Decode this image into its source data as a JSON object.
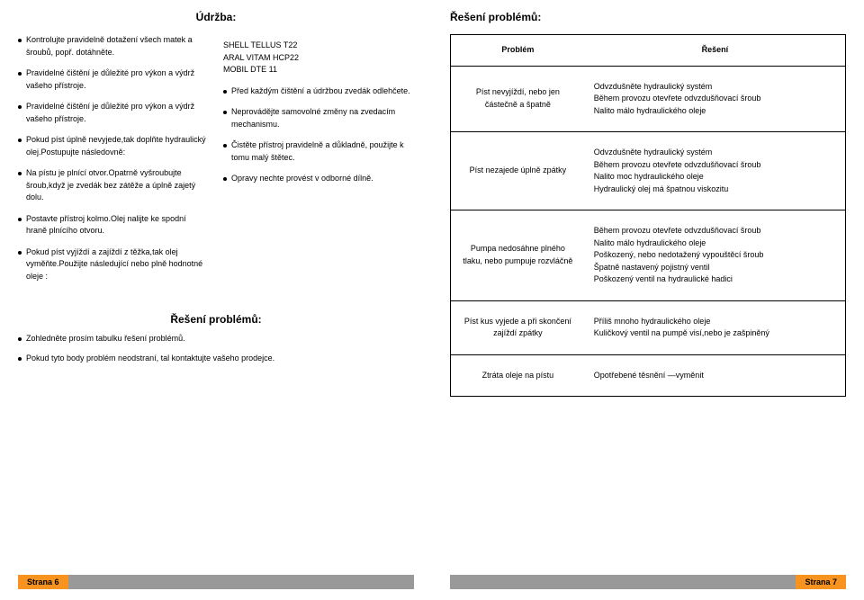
{
  "left": {
    "title": "Údržba:",
    "col1": [
      "Kontrolujte pravidelně dotažení všech matek a šroubů, popř. dotáhněte.",
      "Pravidelné čištění je důležité pro výkon a výdrž vašeho přístroje.",
      "Pravidelné čištění je důležité pro výkon a výdrž vašeho přístroje.",
      "Pokud píst úplně nevyjede,tak doplňte hydraulický olej.Postupujte následovně:",
      "Na pístu je plnící otvor.Opatrně vyšroubujte šroub,když je zvedák bez zátěže a úplně zajetý dolu.",
      "Postavte přístroj kolmo.Olej nalijte ke spodní hraně plnícího otvoru.",
      "Pokud píst vyjíždí a zajíždí z těžka,tak olej vyměňte.Použijte následující nebo plně hodnotné oleje :"
    ],
    "oils": [
      "SHELL TELLUS T22",
      "ARAL VITAM HCP22",
      "MOBIL DTE 11"
    ],
    "col2": [
      "Před každým čištění a údržbou zvedák odlehčete.",
      "Neprovádějte samovolné změny na zvedacím mechanismu.",
      "Čistěte přístroj pravidelně a důkladně, použijte k tomu malý štětec.",
      "Opravy nechte provést v odborné dílně."
    ],
    "subheading": "Řešení problémů:",
    "notes": [
      "Zohledněte prosím tabulku řešení problémů.",
      "Pokud tyto body problém neodstraní, tal kontaktujte vašeho prodejce."
    ],
    "footer": "Strana 6"
  },
  "right": {
    "title": "Řešení problémů:",
    "header": {
      "problem": "Problém",
      "solution": "Řešení"
    },
    "rows": [
      {
        "problem": "Píst nevyjíždí, nebo jen částečně a špatně",
        "solution": "Odvzdušněte hydraulický systém\nBěhem provozu otevřete odvzdušňovací šroub\nNalito málo hydraulického oleje"
      },
      {
        "problem": "Píst nezajede úplně zpátky",
        "solution": "Odvzdušněte hydraulický systém\nBěhem provozu otevřete odvzdušňovací šroub\nNalito moc hydraulického oleje\nHydraulický olej má špatnou viskozitu"
      },
      {
        "problem": "Pumpa nedosáhne plného tlaku, nebo pumpuje rozvláčně",
        "solution": "Během provozu otevřete odvzdušňovací šroub\nNalito málo hydraulického oleje\nPoškozený, nebo nedotažený vypouštěcí šroub\nŠpatně nastavený pojistný ventil\nPoškozený ventil na hydraulické hadici"
      },
      {
        "problem": "Píst kus vyjede a při skončení zajíždí zpátky",
        "solution": "Příliš mnoho hydraulického oleje\nKuličkový ventil na pumpě visí,nebo je zašpiněný"
      },
      {
        "problem": "Ztráta oleje na pístu",
        "solution": "Opotřebené těsnění —vyměnit"
      }
    ],
    "footer": "Strana 7"
  }
}
